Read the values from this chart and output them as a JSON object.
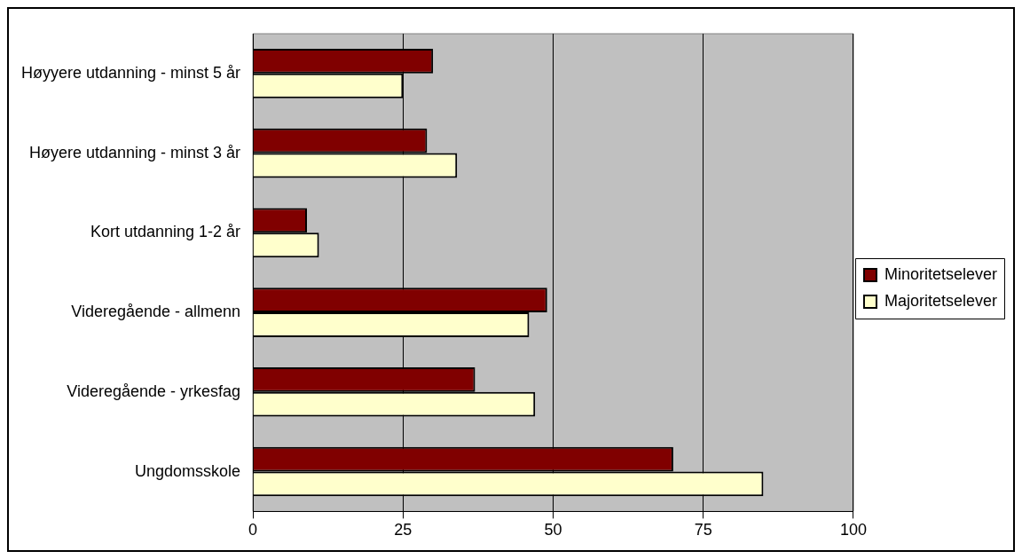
{
  "chart_data": {
    "type": "bar",
    "orientation": "horizontal",
    "categories": [
      "Høyyere utdanning - minst 5 år",
      "Høyere utdanning - minst 3 år",
      "Kort utdanning 1-2 år",
      "Videregående - allmenn",
      "Videregående - yrkesfag",
      "Ungdomsskole"
    ],
    "series": [
      {
        "name": "Minoritetselever",
        "color": "#800000",
        "values": [
          30,
          29,
          9,
          49,
          37,
          70
        ]
      },
      {
        "name": "Majoritetselever",
        "color": "#ffffcc",
        "values": [
          25,
          34,
          11,
          46,
          47,
          85
        ]
      }
    ],
    "xlim": [
      0,
      100
    ],
    "xticks": [
      0,
      25,
      50,
      75,
      100
    ],
    "grid": "x",
    "legend": "right"
  }
}
